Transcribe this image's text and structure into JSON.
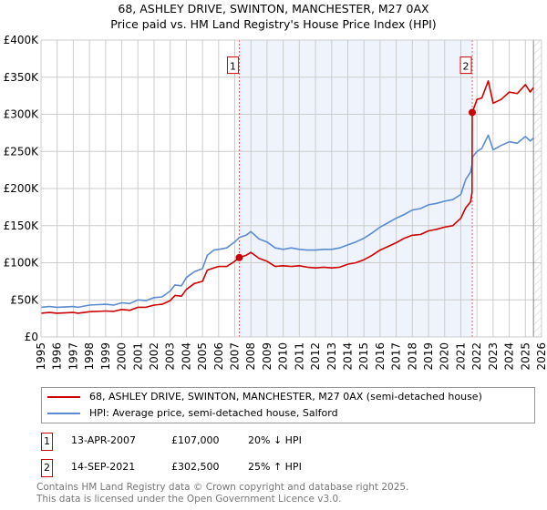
{
  "chart_data": {
    "type": "line",
    "title": "68, ASHLEY DRIVE, SWINTON, MANCHESTER, M27 0AX",
    "subtitle": "Price paid vs. HM Land Registry's House Price Index (HPI)",
    "xlabel": "",
    "ylabel": "",
    "xlim": [
      1995,
      2026
    ],
    "ylim": [
      0,
      400000
    ],
    "y_ticks": [
      0,
      50000,
      100000,
      150000,
      200000,
      250000,
      300000,
      350000,
      400000
    ],
    "y_tick_labels": [
      "£0",
      "£50K",
      "£100K",
      "£150K",
      "£200K",
      "£250K",
      "£300K",
      "£350K",
      "£400K"
    ],
    "x_ticks": [
      1995,
      1996,
      1997,
      1998,
      1999,
      2000,
      2001,
      2002,
      2003,
      2004,
      2005,
      2006,
      2007,
      2008,
      2009,
      2010,
      2011,
      2012,
      2013,
      2014,
      2015,
      2016,
      2017,
      2018,
      2019,
      2020,
      2021,
      2022,
      2023,
      2024,
      2025,
      2026
    ],
    "x_tick_labels": [
      "1995",
      "1996",
      "1997",
      "1998",
      "1999",
      "2000",
      "2001",
      "2002",
      "2003",
      "2004",
      "2005",
      "2006",
      "2007",
      "2008",
      "2009",
      "2010",
      "2011",
      "2012",
      "2013",
      "2014",
      "2015",
      "2016",
      "2017",
      "2018",
      "2019",
      "2020",
      "2021",
      "2022",
      "2023",
      "2024",
      "2025",
      "2026"
    ],
    "grid": true,
    "shaded_range": [
      2007.28,
      2021.71
    ],
    "hatched_from": 2025.5,
    "series": [
      {
        "name": "68, ASHLEY DRIVE, SWINTON, MANCHESTER, M27 0AX (semi-detached house)",
        "color": "#cc0000",
        "x": [
          1995,
          1995.5,
          1996,
          1997,
          1997.3,
          1998,
          1999,
          1999.5,
          2000,
          2000.5,
          2001,
          2001.5,
          2002,
          2002.5,
          2003,
          2003.3,
          2003.7,
          2004,
          2004.5,
          2005,
          2005.3,
          2005.7,
          2006,
          2006.5,
          2007,
          2007.28,
          2007.7,
          2008,
          2008.5,
          2009,
          2009.5,
          2010,
          2010.5,
          2011,
          2011.5,
          2012,
          2012.5,
          2013,
          2013.5,
          2014,
          2014.5,
          2015,
          2015.5,
          2016,
          2016.5,
          2017,
          2017.5,
          2018,
          2018.5,
          2019,
          2019.5,
          2020,
          2020.5,
          2021,
          2021.3,
          2021.6,
          2021.7,
          2021.71,
          2022,
          2022.3,
          2022.7,
          2023,
          2023.5,
          2024,
          2024.5,
          2025,
          2025.3,
          2025.5
        ],
        "y": [
          32000,
          33000,
          32000,
          33000,
          32000,
          34000,
          35000,
          34500,
          37000,
          36000,
          40000,
          40000,
          43000,
          44000,
          49000,
          56000,
          55000,
          64000,
          72000,
          75000,
          90000,
          93000,
          95000,
          95000,
          102000,
          107000,
          110000,
          114000,
          106000,
          102000,
          95000,
          96000,
          95000,
          96000,
          94000,
          93000,
          94000,
          93000,
          94000,
          98000,
          100000,
          104000,
          110000,
          117000,
          122000,
          127000,
          133000,
          137000,
          138000,
          143000,
          145000,
          148000,
          150000,
          160000,
          174000,
          182000,
          195000,
          302500,
          320000,
          322000,
          345000,
          315000,
          320000,
          330000,
          328000,
          340000,
          330000,
          336000
        ]
      },
      {
        "name": "HPI: Average price, semi-detached house, Salford",
        "color": "#5b8bd0",
        "x": [
          1995,
          1995.5,
          1996,
          1997,
          1997.3,
          1998,
          1999,
          1999.5,
          2000,
          2000.5,
          2001,
          2001.5,
          2002,
          2002.5,
          2003,
          2003.3,
          2003.7,
          2004,
          2004.5,
          2005,
          2005.3,
          2005.7,
          2006,
          2006.5,
          2007,
          2007.28,
          2007.7,
          2008,
          2008.5,
          2009,
          2009.5,
          2010,
          2010.5,
          2011,
          2011.5,
          2012,
          2012.5,
          2013,
          2013.5,
          2014,
          2014.5,
          2015,
          2015.5,
          2016,
          2016.5,
          2017,
          2017.5,
          2018,
          2018.5,
          2019,
          2019.5,
          2020,
          2020.5,
          2021,
          2021.3,
          2021.6,
          2021.7,
          2021.71,
          2022,
          2022.3,
          2022.7,
          2023,
          2023.5,
          2024,
          2024.5,
          2025,
          2025.3,
          2025.5
        ],
        "y": [
          40000,
          41000,
          40000,
          41000,
          40000,
          43000,
          44000,
          43000,
          46000,
          45000,
          50000,
          49000,
          53000,
          54000,
          62000,
          70000,
          69000,
          80000,
          88000,
          92000,
          110000,
          117000,
          118000,
          120000,
          128000,
          134000,
          137000,
          142000,
          132000,
          128000,
          120000,
          118000,
          120000,
          118000,
          117000,
          117000,
          118000,
          118000,
          120000,
          124000,
          128000,
          133000,
          140000,
          148000,
          154000,
          160000,
          165000,
          171000,
          173000,
          178000,
          180000,
          183000,
          185000,
          192000,
          212000,
          222000,
          232000,
          242000,
          250000,
          254000,
          272000,
          252000,
          258000,
          263000,
          261000,
          270000,
          264000,
          268000
        ]
      }
    ],
    "annotations": [
      {
        "label": "1",
        "x": 2007.28,
        "y": 107000
      },
      {
        "label": "2",
        "x": 2021.71,
        "y": 302500
      }
    ]
  },
  "legend": {
    "items": [
      {
        "label": "68, ASHLEY DRIVE, SWINTON, MANCHESTER, M27 0AX (semi-detached house)",
        "color": "#cc0000"
      },
      {
        "label": "HPI: Average price, semi-detached house, Salford",
        "color": "#5b8bd0"
      }
    ]
  },
  "sales": [
    {
      "num": "1",
      "date": "13-APR-2007",
      "price": "£107,000",
      "hpi": "20% ↓ HPI"
    },
    {
      "num": "2",
      "date": "14-SEP-2021",
      "price": "£302,500",
      "hpi": "25% ↑ HPI"
    }
  ],
  "footer": {
    "line1": "Contains HM Land Registry data © Crown copyright and database right 2025.",
    "line2": "This data is licensed under the Open Government Licence v3.0."
  }
}
